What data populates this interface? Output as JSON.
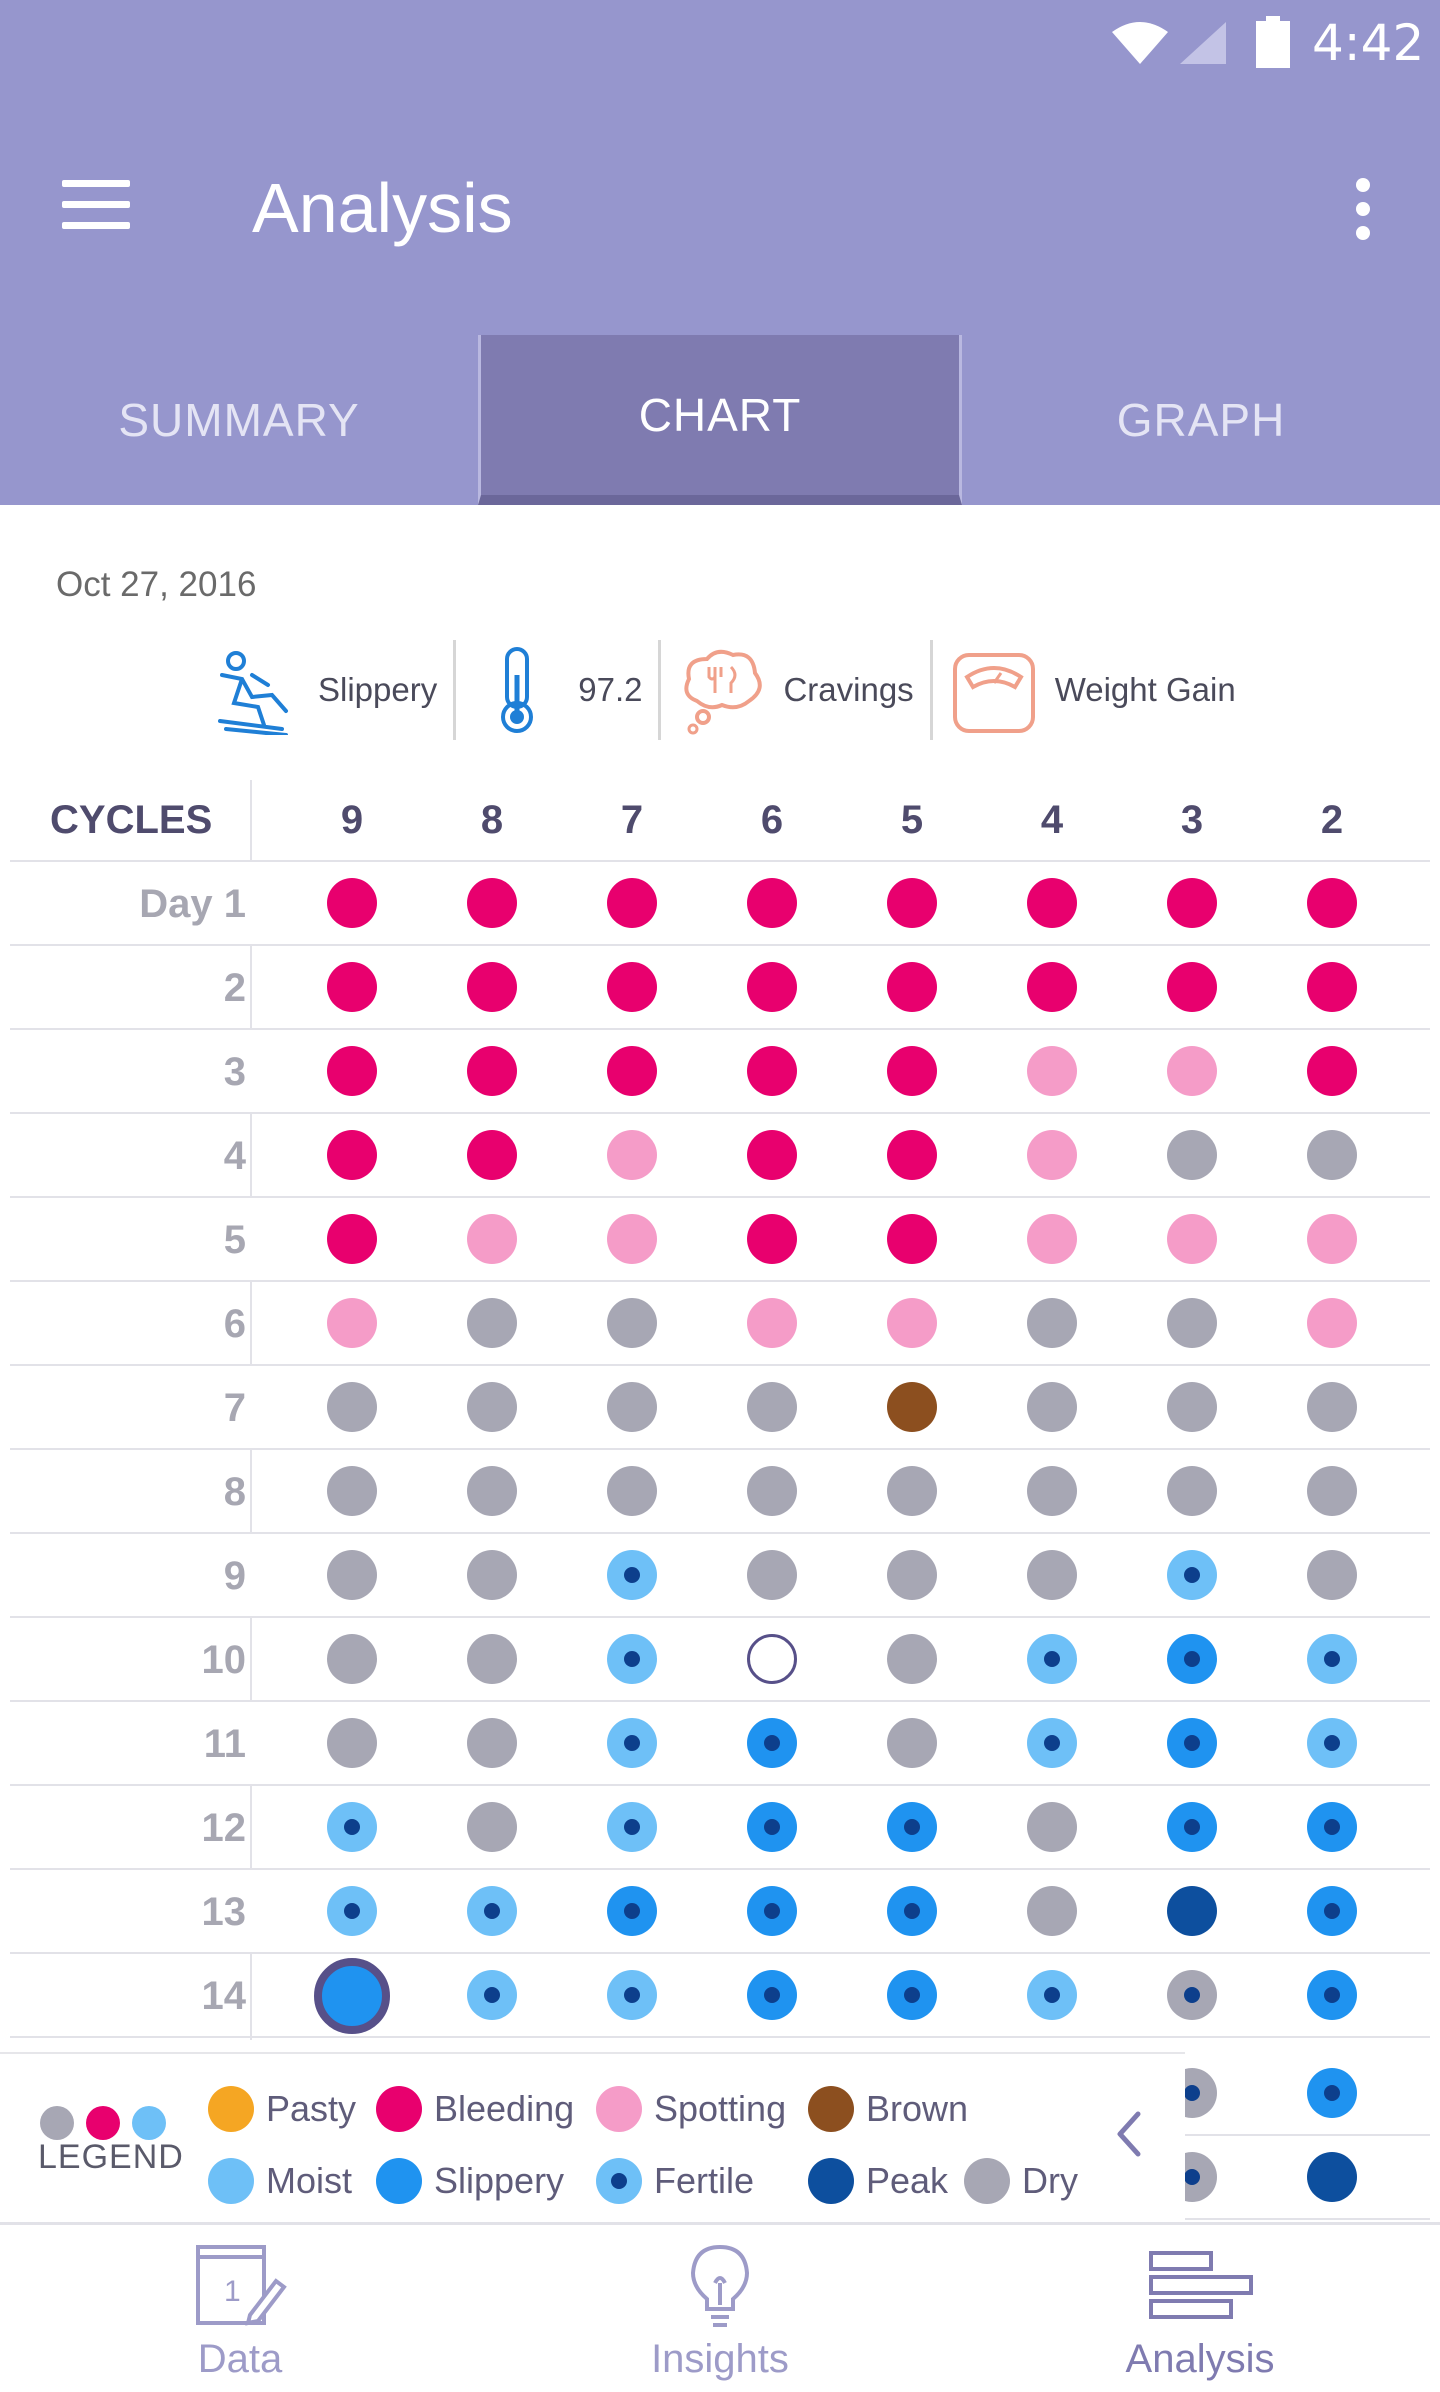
{
  "status": {
    "time": "4:42"
  },
  "appbar": {
    "title": "Analysis"
  },
  "tabs": [
    {
      "label": "SUMMARY",
      "active": false
    },
    {
      "label": "CHART",
      "active": true
    },
    {
      "label": "GRAPH",
      "active": false
    }
  ],
  "date": "Oct 27, 2016",
  "symptoms": [
    {
      "icon": "slippery-icon",
      "label": "Slippery"
    },
    {
      "icon": "thermometer-icon",
      "label": "97.2"
    },
    {
      "icon": "cravings-icon",
      "label": "Cravings"
    },
    {
      "icon": "scale-icon",
      "label": "Weight Gain"
    }
  ],
  "colors": {
    "bleeding": "#e8006e",
    "spotting": "#f59cc8",
    "dry": "#a7a7b4",
    "brown": "#8c4f1f",
    "moist": "#6ec0f7",
    "slippery": "#1f93f0",
    "peak": "#0d4f9e",
    "pasty": "#f5a623",
    "fertile_center": "#0d3f8c",
    "empty": "#ffffff",
    "header": "#9696cd",
    "selected_ring": "#575089"
  },
  "grid": {
    "header_label": "CYCLES",
    "cycles": [
      "9",
      "8",
      "7",
      "6",
      "5",
      "4",
      "3",
      "2"
    ],
    "day_labels": [
      "Day 1",
      "2",
      "3",
      "4",
      "5",
      "6",
      "7",
      "8",
      "9",
      "10",
      "11",
      "12",
      "13",
      "14"
    ],
    "rows": [
      [
        "bleeding",
        "bleeding",
        "bleeding",
        "bleeding",
        "bleeding",
        "bleeding",
        "bleeding",
        "bleeding"
      ],
      [
        "bleeding",
        "bleeding",
        "bleeding",
        "bleeding",
        "bleeding",
        "bleeding",
        "bleeding",
        "bleeding"
      ],
      [
        "bleeding",
        "bleeding",
        "bleeding",
        "bleeding",
        "bleeding",
        "spotting",
        "spotting",
        "bleeding"
      ],
      [
        "bleeding",
        "bleeding",
        "spotting",
        "bleeding",
        "bleeding",
        "spotting",
        "dry",
        "dry"
      ],
      [
        "bleeding",
        "spotting",
        "spotting",
        "bleeding",
        "bleeding",
        "spotting",
        "spotting",
        "spotting"
      ],
      [
        "spotting",
        "dry",
        "dry",
        "spotting",
        "spotting",
        "dry",
        "dry",
        "spotting"
      ],
      [
        "dry",
        "dry",
        "dry",
        "dry",
        "brown",
        "dry",
        "dry",
        "dry"
      ],
      [
        "dry",
        "dry",
        "dry",
        "dry",
        "dry",
        "dry",
        "dry",
        "dry"
      ],
      [
        "dry",
        "dry",
        "moist-fertile",
        "dry",
        "dry",
        "dry",
        "moist-fertile",
        "dry"
      ],
      [
        "dry",
        "dry",
        "moist-fertile",
        "empty",
        "dry",
        "moist-fertile",
        "slippery-fertile",
        "moist-fertile"
      ],
      [
        "dry",
        "dry",
        "moist-fertile",
        "slippery-fertile",
        "dry",
        "moist-fertile",
        "slippery-fertile",
        "moist-fertile"
      ],
      [
        "moist-fertile",
        "dry",
        "moist-fertile",
        "slippery-fertile",
        "slippery-fertile",
        "dry",
        "slippery-fertile",
        "slippery-fertile"
      ],
      [
        "moist-fertile",
        "moist-fertile",
        "slippery-fertile",
        "slippery-fertile",
        "slippery-fertile",
        "dry",
        "peak",
        "slippery-fertile"
      ],
      [
        "selected",
        "moist-fertile",
        "moist-fertile",
        "slippery-fertile",
        "slippery-fertile",
        "moist-fertile",
        "dry-fertile",
        "slippery-fertile"
      ]
    ],
    "partial_rows": [
      [
        "dry-fertile",
        "slippery-fertile"
      ],
      [
        "dry-fertile",
        "peak"
      ]
    ]
  },
  "legend": {
    "label": "LEGEND",
    "items": [
      {
        "type": "pasty",
        "label": "Pasty"
      },
      {
        "type": "bleeding",
        "label": "Bleeding"
      },
      {
        "type": "spotting",
        "label": "Spotting"
      },
      {
        "type": "brown",
        "label": "Brown"
      },
      {
        "type": "moist",
        "label": "Moist"
      },
      {
        "type": "slippery",
        "label": "Slippery"
      },
      {
        "type": "moist-fertile",
        "label": "Fertile"
      },
      {
        "type": "peak",
        "label": "Peak"
      },
      {
        "type": "dry",
        "label": "Dry"
      }
    ]
  },
  "bottomnav": [
    {
      "label": "Data",
      "icon": "calendar-icon"
    },
    {
      "label": "Insights",
      "icon": "lightbulb-icon"
    },
    {
      "label": "Analysis",
      "icon": "bars-icon"
    }
  ]
}
